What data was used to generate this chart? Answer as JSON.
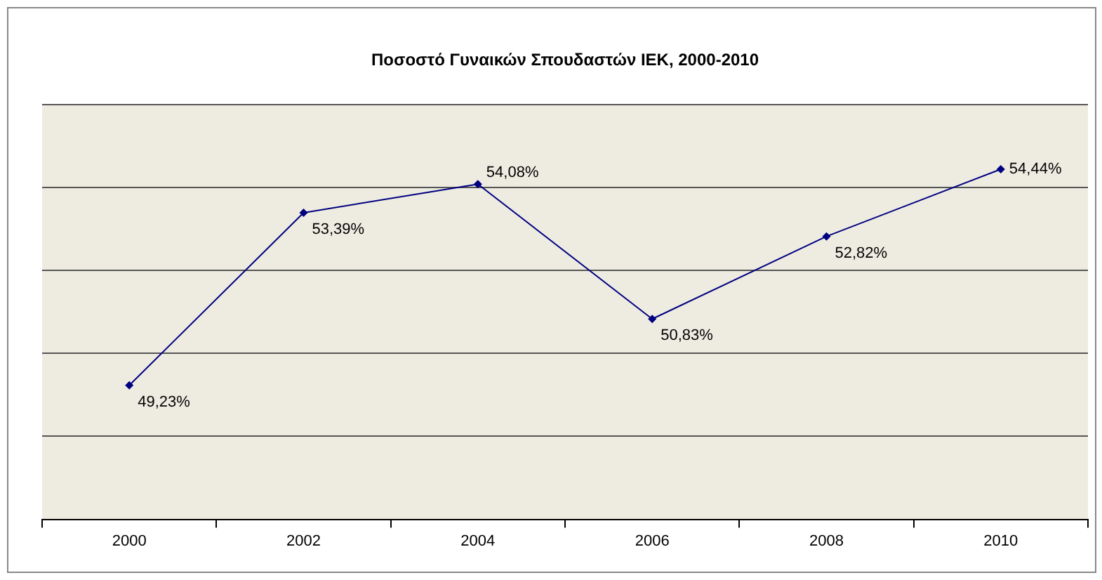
{
  "chart_data": {
    "type": "line",
    "title": "Ποσοστό Γυναικών Σπουδαστών ΙΕΚ, 2000-2010",
    "categories": [
      "2000",
      "2002",
      "2004",
      "2006",
      "2008",
      "2010"
    ],
    "series": [
      {
        "color": "#000080",
        "values": [
          49.23,
          53.39,
          54.08,
          50.83,
          52.82,
          54.44
        ],
        "value_labels": [
          "49,23%",
          "53,39%",
          "54,08%",
          "50,83%",
          "52,82%",
          "54,44%"
        ]
      }
    ],
    "ylim": [
      46,
      56
    ],
    "yticks": [
      {
        "value": 46,
        "label": null
      },
      {
        "value": 48,
        "label": null
      },
      {
        "value": 50,
        "label": null
      },
      {
        "value": 52,
        "label": null
      },
      {
        "value": 54,
        "label": null
      },
      {
        "value": 56,
        "label": null
      }
    ],
    "grid": "y",
    "tick_labels": "x",
    "marker": "diamond",
    "line_style": "solid",
    "legend": false
  }
}
